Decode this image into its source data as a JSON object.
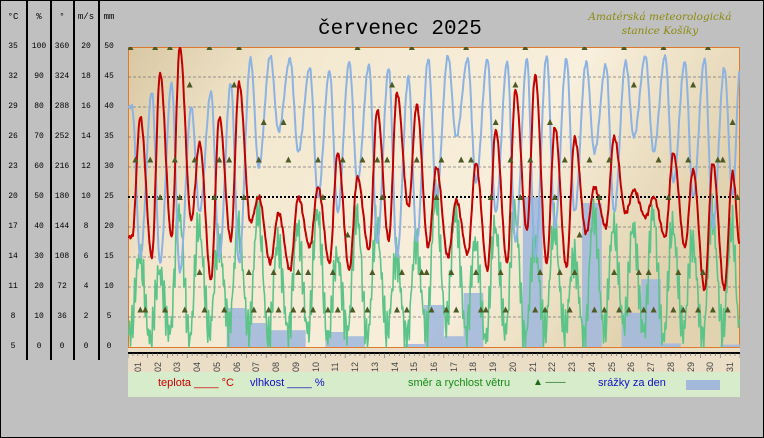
{
  "header": {
    "title": "červenec 2025",
    "station_line1": "Amatérská meteorologická",
    "station_line2": "stanice Košíky"
  },
  "axes": [
    {
      "unit": "°C",
      "ticks": [
        "35",
        "32",
        "29",
        "26",
        "23",
        "20",
        "17",
        "14",
        "11",
        "8",
        "5"
      ]
    },
    {
      "unit": "%",
      "ticks": [
        "100",
        "90",
        "80",
        "70",
        "60",
        "50",
        "40",
        "30",
        "20",
        "10",
        "0"
      ]
    },
    {
      "unit": "°",
      "ticks": [
        "360",
        "324",
        "288",
        "252",
        "216",
        "180",
        "144",
        "108",
        "72",
        "36",
        "0"
      ]
    },
    {
      "unit": "m/s",
      "ticks": [
        "20",
        "18",
        "16",
        "14",
        "12",
        "10",
        "8",
        "6",
        "4",
        "2",
        "0"
      ]
    },
    {
      "unit": "mm",
      "ticks": [
        "50",
        "45",
        "40",
        "35",
        "30",
        "25",
        "20",
        "15",
        "10",
        "5",
        "0"
      ]
    }
  ],
  "legend": {
    "temp_label": "teplota ____ °C",
    "humidity_label": "vlhkost ____ %",
    "wind_label": "směr a rychlost větru",
    "wind_symbol": "▲ ——",
    "precip_label": "srážky za den"
  },
  "colors": {
    "temperature": "#c00000",
    "humidity": "#8db3e2",
    "wind_speed": "#5cc489",
    "wind_direction": "#4e5a26",
    "precipitation": "#a3b9dc"
  },
  "chart_data": {
    "type": "line",
    "title": "červenec 2025",
    "x_categories": [
      "01",
      "02",
      "03",
      "04",
      "05",
      "06",
      "07",
      "08",
      "09",
      "10",
      "11",
      "12",
      "13",
      "14",
      "15",
      "16",
      "17",
      "18",
      "19",
      "20",
      "21",
      "22",
      "23",
      "24",
      "25",
      "26",
      "27",
      "28",
      "29",
      "30",
      "31"
    ],
    "reference_line": {
      "axis": "°C",
      "value": 20,
      "style": "dotted"
    },
    "grid": true,
    "series": {
      "temperature": {
        "name": "teplota",
        "unit": "°C",
        "ylim": [
          5,
          35
        ],
        "start": 16,
        "end": 15,
        "daily_min": [
          16,
          14,
          16,
          17.7,
          11.7,
          15.7,
          17.5,
          13.4,
          12.7,
          15,
          13.4,
          12.7,
          14.7,
          15.7,
          19,
          15,
          14,
          14.3,
          12.7,
          13.4,
          16.7,
          13.4,
          13,
          16.4,
          17,
          18.4,
          18,
          16,
          15,
          10.7,
          10.8
        ],
        "daily_max": [
          28,
          32.4,
          35,
          25.4,
          28,
          31.4,
          20,
          18.4,
          20,
          21,
          24.4,
          22,
          28.7,
          30.4,
          29.2,
          23,
          19.7,
          23.4,
          26.7,
          30.7,
          32.2,
          27,
          25.9,
          21,
          26,
          20.7,
          20,
          24.4,
          22.7,
          23.4,
          22.4
        ]
      },
      "humidity": {
        "name": "vlhkost",
        "unit": "%",
        "ylim": [
          0,
          100
        ],
        "daily_max": [
          80,
          85,
          88,
          80,
          85,
          88,
          96,
          97,
          96,
          93,
          92,
          95,
          94,
          93,
          90,
          96,
          97,
          96,
          96,
          95,
          96,
          97,
          96,
          95,
          94,
          95,
          97,
          97,
          95,
          96,
          93
        ],
        "daily_min": [
          30,
          28,
          25,
          45,
          30,
          28,
          60,
          72,
          65,
          50,
          45,
          55,
          35,
          30,
          35,
          50,
          70,
          55,
          45,
          35,
          30,
          40,
          45,
          65,
          45,
          70,
          65,
          55,
          50,
          40,
          50
        ]
      },
      "wind_speed": {
        "name": "rychlost větru",
        "unit": "m/s",
        "ylim": [
          0,
          20
        ],
        "daily_max": [
          6,
          5,
          9,
          8,
          7,
          8,
          9,
          7,
          8,
          9,
          6,
          9,
          8,
          6,
          7,
          10,
          9,
          7,
          8,
          9,
          7,
          8,
          6,
          9,
          8,
          8,
          9,
          8,
          7,
          9,
          8
        ],
        "daily_min": [
          1,
          0.5,
          1,
          0.5,
          1,
          1.5,
          1,
          0.5,
          1,
          1,
          0.5,
          1,
          0.5,
          1,
          0.5,
          1,
          1.5,
          1,
          0.5,
          1,
          0.5,
          1,
          1,
          0.5,
          1,
          1.5,
          1,
          0.5,
          1,
          0.5,
          1
        ]
      },
      "wind_direction": {
        "name": "směr větru",
        "unit": "°",
        "ylim": [
          0,
          360
        ],
        "readings_per_day": [
          [
            360,
            225,
            45,
            45
          ],
          [
            225,
            360,
            180,
            45
          ],
          [
            360,
            225,
            180,
            45
          ],
          [
            315,
            225,
            90,
            45
          ],
          [
            360,
            180,
            225,
            45
          ],
          [
            225,
            315,
            360,
            180
          ],
          [
            90,
            45,
            225,
            270
          ],
          [
            45,
            90,
            45,
            270
          ],
          [
            225,
            45,
            90,
            45
          ],
          [
            90,
            45,
            225,
            180
          ],
          [
            45,
            90,
            45,
            225
          ],
          [
            135,
            45,
            360,
            225
          ],
          [
            45,
            90,
            225,
            180
          ],
          [
            225,
            315,
            45,
            90
          ],
          [
            45,
            360,
            225,
            90
          ],
          [
            90,
            45,
            180,
            225
          ],
          [
            45,
            90,
            45,
            225
          ],
          [
            360,
            225,
            90,
            45
          ],
          [
            45,
            180,
            270,
            90
          ],
          [
            45,
            225,
            315,
            180
          ],
          [
            360,
            225,
            45,
            90
          ],
          [
            45,
            270,
            180,
            90
          ],
          [
            225,
            45,
            90,
            135
          ],
          [
            360,
            225,
            45,
            180
          ],
          [
            45,
            225,
            90,
            45
          ],
          [
            360,
            45,
            315,
            90
          ],
          [
            45,
            90,
            45,
            225
          ],
          [
            360,
            180,
            45,
            90
          ],
          [
            45,
            225,
            315,
            45
          ],
          [
            90,
            360,
            45,
            225
          ],
          [
            225,
            45,
            270,
            180
          ]
        ]
      },
      "precipitation": {
        "name": "srážky za den",
        "unit": "mm",
        "ylim": [
          0,
          50
        ],
        "values": [
          0,
          0,
          0,
          0,
          0,
          6.5,
          4,
          2.8,
          2.8,
          0,
          2.5,
          1.8,
          0,
          0,
          0.5,
          7,
          1.8,
          9,
          0,
          0,
          25,
          0,
          0,
          24,
          0,
          5.7,
          11.3,
          0.6,
          0,
          0,
          0.4
        ]
      }
    }
  }
}
